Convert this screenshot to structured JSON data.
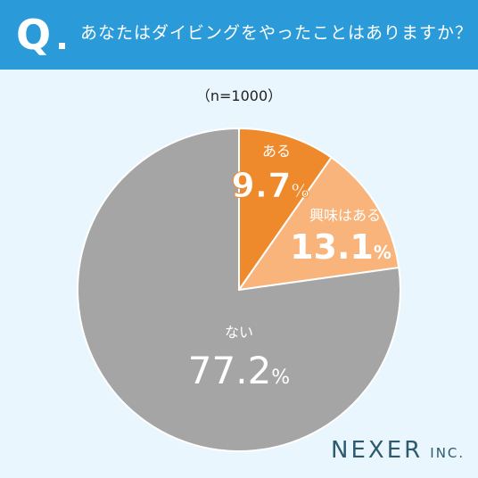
{
  "header": {
    "q_mark": "Q",
    "question": "あなたはダイビングをやったことはありますか？"
  },
  "sample_size": "（n=1000）",
  "chart_data": {
    "type": "pie",
    "slices": [
      {
        "label": "ある",
        "value": 9.7,
        "display": "9.7",
        "unit": "%",
        "color": "#ef8a2c"
      },
      {
        "label": "興味はある",
        "value": 13.1,
        "display": "13.1",
        "unit": "%",
        "color": "#f8b47a"
      },
      {
        "label": "ない",
        "value": 77.2,
        "display": "77.2",
        "unit": "%",
        "color": "#a5a5a5"
      }
    ],
    "start": "12 o'clock, clockwise"
  },
  "logo": {
    "main": "NEXER",
    "sub": "INC."
  }
}
